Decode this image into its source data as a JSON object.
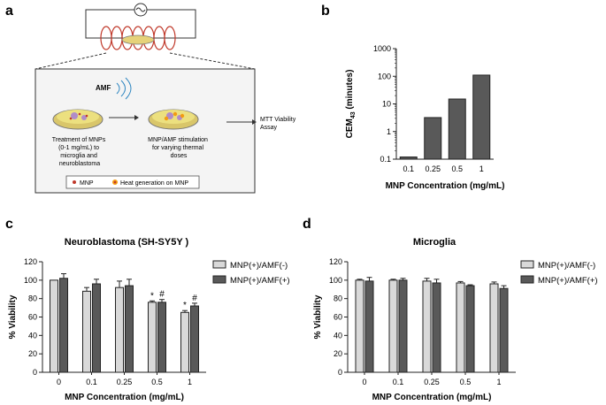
{
  "panel_labels": {
    "a": "a",
    "b": "b",
    "c": "c",
    "d": "d"
  },
  "schematic": {
    "amf": "AMF",
    "step1": [
      "Treatment of MNPs",
      "(0-1 mg/mL) to",
      "microglia and",
      "neuroblastoma"
    ],
    "step2": [
      "MNP/AMF stimulation",
      "for varying thermal",
      "doses"
    ],
    "step3": [
      "MTT Viability",
      "Assay"
    ],
    "legend_mnp": "MNP",
    "legend_heat": "Heat generation on MNP"
  },
  "chart_data": [
    {
      "id": "b",
      "type": "bar",
      "ylabel_main": "CEM",
      "ylabel_sub": "43",
      "ylabel_tail": " (minutes)",
      "xlabel": "MNP Concentration (mg/mL)",
      "scale": "log",
      "ylim": [
        0.1,
        1000
      ],
      "yticks": [
        0.1,
        1,
        10,
        100,
        1000
      ],
      "ytick_labels": [
        "0.1",
        "1",
        "10",
        "100",
        "1000"
      ],
      "categories": [
        "0.1",
        "0.25",
        "0.5",
        "1"
      ],
      "values": [
        0.12,
        3.2,
        15,
        110
      ],
      "color": "#595959"
    },
    {
      "id": "c",
      "type": "bar",
      "title": "Neuroblastoma (SH-SY5Y )",
      "ylabel": "% Viability",
      "xlabel": "MNP Concentration (mg/mL)",
      "ylim": [
        0,
        120
      ],
      "yticks": [
        0,
        20,
        40,
        60,
        80,
        100,
        120
      ],
      "categories": [
        "0",
        "0.1",
        "0.25",
        "0.5",
        "1"
      ],
      "series": [
        {
          "name": "MNP(+)/AMF(-)",
          "color": "#d9d9d9",
          "values": [
            100,
            88,
            92,
            76,
            65
          ],
          "errors": [
            0,
            4,
            7,
            1.5,
            2
          ],
          "annotations": [
            "",
            "",
            "",
            "*",
            "*"
          ]
        },
        {
          "name": "MNP(+)/AMF(+)",
          "color": "#595959",
          "values": [
            102,
            96,
            94,
            76,
            72
          ],
          "errors": [
            5,
            5,
            7,
            3,
            3
          ],
          "annotations": [
            "",
            "",
            "",
            "#",
            "#"
          ]
        }
      ],
      "legend": "right"
    },
    {
      "id": "d",
      "type": "bar",
      "title": "Microglia",
      "ylabel": "% Viability",
      "xlabel": "MNP Concentration (mg/mL)",
      "ylim": [
        0,
        120
      ],
      "yticks": [
        0,
        20,
        40,
        60,
        80,
        100,
        120
      ],
      "categories": [
        "0",
        "0.1",
        "0.25",
        "0.5",
        "1"
      ],
      "series": [
        {
          "name": "MNP(+)/AMF(-)",
          "color": "#d9d9d9",
          "values": [
            100,
            100,
            99,
            97,
            96
          ],
          "errors": [
            1,
            1,
            3,
            1.5,
            2
          ],
          "annotations": [
            "",
            "",
            "",
            "",
            ""
          ]
        },
        {
          "name": "MNP(+)/AMF(+)",
          "color": "#595959",
          "values": [
            99,
            100,
            97,
            94,
            91
          ],
          "errors": [
            4,
            2,
            4,
            1,
            3
          ],
          "annotations": [
            "",
            "",
            "",
            "",
            ""
          ]
        }
      ],
      "legend": "right"
    }
  ]
}
